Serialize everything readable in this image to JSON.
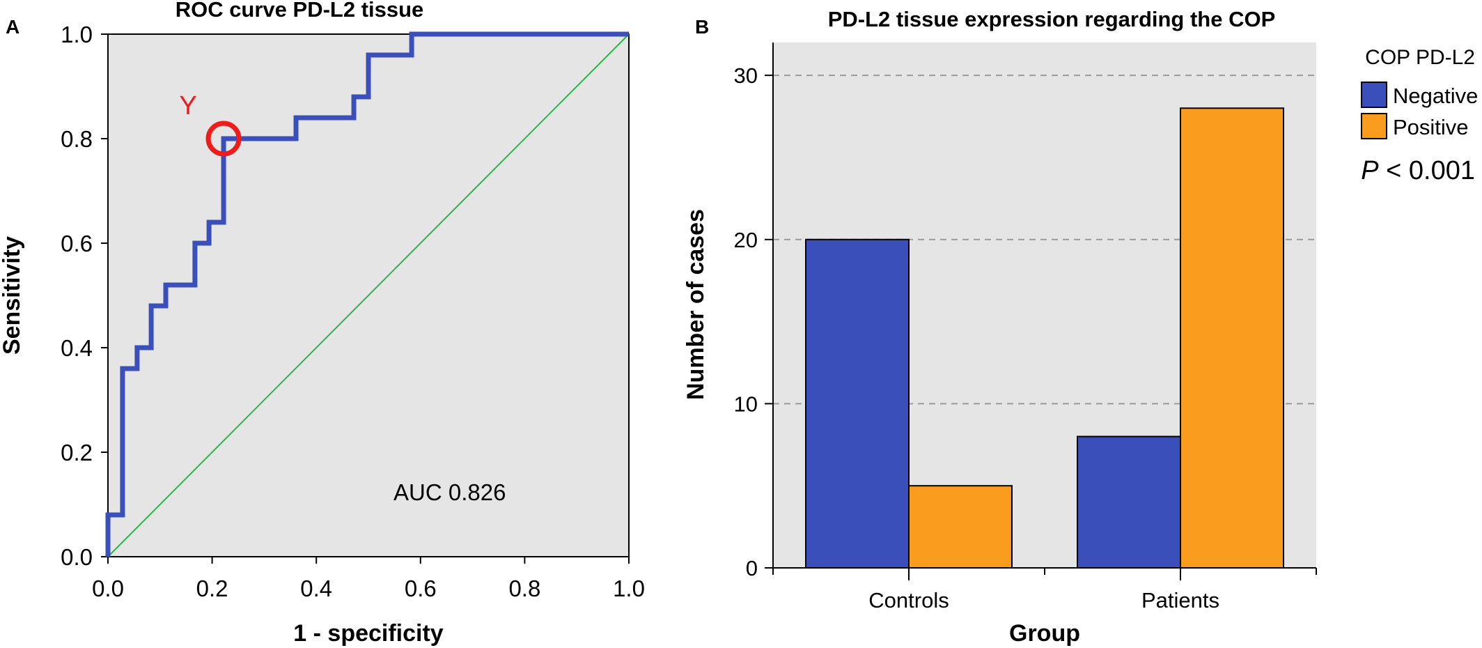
{
  "chart_data": [
    {
      "panel": "A",
      "type": "line",
      "title": "ROC curve PD-L2 tissue",
      "xlabel": "1 - specificity",
      "ylabel": "Sensitivity",
      "xlim": [
        0,
        1
      ],
      "ylim": [
        0,
        1
      ],
      "xticks": [
        "0.0",
        "0.2",
        "0.4",
        "0.6",
        "0.8",
        "1.0"
      ],
      "yticks": [
        "0.0",
        "0.2",
        "0.4",
        "0.6",
        "0.8",
        "1.0"
      ],
      "grid": false,
      "roc": {
        "x": [
          0.0,
          0.0,
          0.028,
          0.028,
          0.056,
          0.056,
          0.083,
          0.083,
          0.111,
          0.111,
          0.167,
          0.167,
          0.194,
          0.194,
          0.222,
          0.222,
          0.361,
          0.361,
          0.472,
          0.472,
          0.5,
          0.5,
          0.583,
          0.583,
          1.0
        ],
        "y": [
          0.0,
          0.08,
          0.08,
          0.36,
          0.36,
          0.4,
          0.4,
          0.48,
          0.48,
          0.52,
          0.52,
          0.6,
          0.6,
          0.64,
          0.64,
          0.8,
          0.8,
          0.84,
          0.84,
          0.88,
          0.88,
          0.96,
          0.96,
          1.0,
          1.0
        ],
        "color": "#3a4fba"
      },
      "reference_line": {
        "x": [
          0,
          1
        ],
        "y": [
          0,
          1
        ],
        "color": "#2db34a"
      },
      "highlight": {
        "x": 0.222,
        "y": 0.8,
        "label": "Y",
        "color": "#ee1c1c"
      },
      "annotation": "AUC 0.826",
      "plot_bg": "#e5e5e5"
    },
    {
      "panel": "B",
      "type": "bar",
      "title": "PD-L2 tissue expression regarding the COP",
      "xlabel": "Group",
      "ylabel": "Number of cases",
      "categories": [
        "Controls",
        "Patients"
      ],
      "series": [
        {
          "name": "Negative",
          "values": [
            20,
            8
          ],
          "color": "#3a4fba"
        },
        {
          "name": "Positive",
          "values": [
            5,
            28
          ],
          "color": "#fa9c1e"
        }
      ],
      "ylim": [
        0,
        32
      ],
      "yticks": [
        "0",
        "10",
        "20",
        "30"
      ],
      "grid": true,
      "legend_title": "COP PD-L2",
      "legend_position": "right",
      "annotation_p": "P",
      "annotation_rest": " < 0.001",
      "plot_bg": "#e5e5e5"
    }
  ]
}
